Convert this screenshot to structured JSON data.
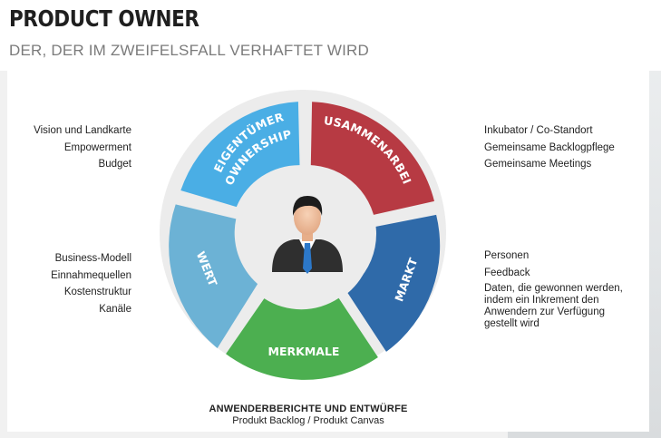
{
  "header": {
    "title": "PRODUCT OWNER",
    "subtitle": "DER, DER IM ZWEIFELSFALL VERHAFTET WIRD"
  },
  "diagram": {
    "segments": [
      {
        "label_line1": "EIGENTÜMER",
        "label_line2": "(OWNERSHIP)",
        "color": "#4aaee5"
      },
      {
        "label": "ZUSAMMENARBEIT",
        "color": "#b73a43"
      },
      {
        "label": "MARKT",
        "color": "#2f6aa9"
      },
      {
        "label": "MERKMALE",
        "color": "#4caf50"
      },
      {
        "label": "WERT",
        "color": "#6cb2d5"
      }
    ],
    "center_icon": "businessman-icon"
  },
  "left_lists": {
    "ownership": [
      "Vision und Landkarte",
      "Empowerment",
      "Budget"
    ],
    "value": [
      "Business-Modell",
      "Einnahmequellen",
      "Kostenstruktur",
      "Kanäle"
    ]
  },
  "right_lists": {
    "collaboration": [
      "Inkubator / Co-Standort",
      "Gemeinsame Backlogpflege",
      "Gemeinsame Meetings"
    ],
    "market": [
      "Personen",
      "Feedback"
    ],
    "market_note": [
      "Daten, die gewonnen werden,",
      "indem ein Inkrement den",
      "Anwendern zur Verfügung",
      "gestellt wird"
    ]
  },
  "bottom": {
    "line1": "ANWENDERBERICHTE UND ENTWÜRFE",
    "line2": "Produkt Backlog / Produkt Canvas"
  }
}
